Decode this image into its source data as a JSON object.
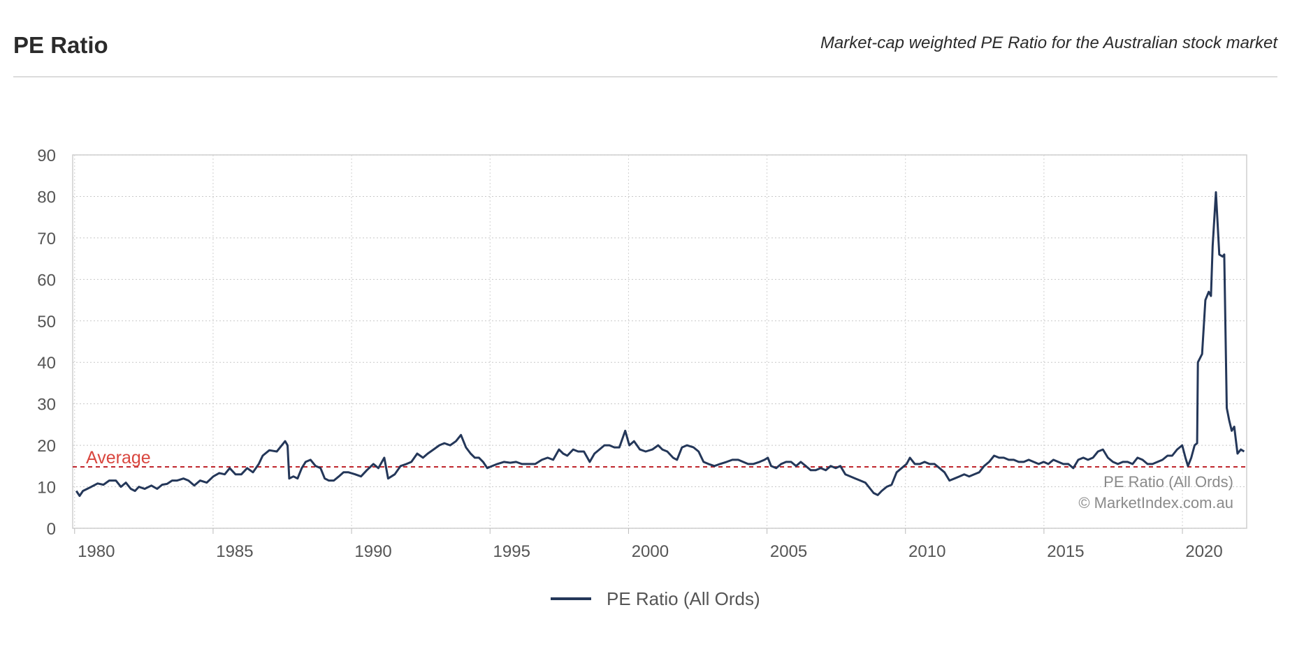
{
  "header": {
    "title": "PE Ratio",
    "subtitle": "Market-cap weighted PE Ratio for the Australian stock market"
  },
  "chart_data": {
    "type": "line",
    "title": "PE Ratio",
    "xlabel": "",
    "ylabel": "",
    "xlim": [
      1979.93,
      2022.32
    ],
    "ylim": [
      0,
      90
    ],
    "grid": true,
    "legend_placement": "bottom-center",
    "y_ticks": [
      "0",
      "10",
      "20",
      "30",
      "40",
      "50",
      "60",
      "70",
      "80",
      "90"
    ],
    "x_ticks": [
      "1980",
      "1985",
      "1990",
      "1995",
      "2000",
      "2005",
      "2010",
      "2015",
      "2020"
    ],
    "average": {
      "label": "Average",
      "value": 14.8,
      "color": "#c0262d"
    },
    "annotations": [
      "PE Ratio (All Ords)",
      "© MarketIndex.com.au"
    ],
    "series": [
      {
        "name": "PE Ratio (All Ords)",
        "color": "#243759",
        "x": [
          1980.06,
          1980.18,
          1980.3,
          1980.6,
          1980.83,
          1981.04,
          1981.25,
          1981.49,
          1981.67,
          1981.85,
          1982.03,
          1982.18,
          1982.32,
          1982.53,
          1982.77,
          1982.98,
          1983.16,
          1983.34,
          1983.52,
          1983.7,
          1983.93,
          1984.11,
          1984.32,
          1984.53,
          1984.77,
          1985.01,
          1985.22,
          1985.42,
          1985.6,
          1985.81,
          1986.02,
          1986.23,
          1986.44,
          1986.65,
          1986.79,
          1987.03,
          1987.3,
          1987.6,
          1987.69,
          1987.75,
          1987.9,
          1988.05,
          1988.2,
          1988.34,
          1988.52,
          1988.7,
          1988.88,
          1989.03,
          1989.18,
          1989.36,
          1989.54,
          1989.71,
          1989.89,
          1990.13,
          1990.34,
          1990.55,
          1990.79,
          1990.97,
          1991.18,
          1991.32,
          1991.56,
          1991.77,
          1991.98,
          1992.16,
          1992.37,
          1992.58,
          1992.75,
          1992.96,
          1993.17,
          1993.35,
          1993.56,
          1993.77,
          1993.95,
          1994.13,
          1994.3,
          1994.45,
          1994.6,
          1994.75,
          1994.9,
          1995.08,
          1995.26,
          1995.5,
          1995.73,
          1995.94,
          1996.15,
          1996.39,
          1996.63,
          1996.87,
          1997.08,
          1997.28,
          1997.49,
          1997.64,
          1997.79,
          1998.0,
          1998.18,
          1998.39,
          1998.6,
          1998.77,
          1998.95,
          1999.13,
          1999.31,
          1999.49,
          1999.67,
          1999.88,
          2000.03,
          2000.2,
          2000.41,
          2000.62,
          2000.86,
          2001.07,
          2001.22,
          2001.4,
          2001.61,
          2001.75,
          2001.93,
          2002.11,
          2002.35,
          2002.53,
          2002.71,
          2002.89,
          2003.1,
          2003.3,
          2003.54,
          2003.75,
          2003.96,
          2004.14,
          2004.32,
          2004.5,
          2004.73,
          2004.91,
          2005.03,
          2005.15,
          2005.33,
          2005.51,
          2005.69,
          2005.87,
          2006.05,
          2006.22,
          2006.4,
          2006.58,
          2006.76,
          2006.94,
          2007.12,
          2007.3,
          2007.48,
          2007.65,
          2007.83,
          2008.01,
          2008.19,
          2008.37,
          2008.55,
          2008.73,
          2008.85,
          2009.0,
          2009.14,
          2009.32,
          2009.5,
          2009.68,
          2009.86,
          2010.04,
          2010.16,
          2010.34,
          2010.52,
          2010.69,
          2010.87,
          2011.05,
          2011.23,
          2011.41,
          2011.59,
          2011.77,
          2011.95,
          2012.12,
          2012.3,
          2012.48,
          2012.66,
          2012.84,
          2013.02,
          2013.2,
          2013.38,
          2013.55,
          2013.73,
          2013.91,
          2014.09,
          2014.27,
          2014.45,
          2014.63,
          2014.81,
          2014.99,
          2015.16,
          2015.34,
          2015.52,
          2015.7,
          2015.88,
          2016.06,
          2016.24,
          2016.42,
          2016.59,
          2016.77,
          2016.95,
          2017.13,
          2017.31,
          2017.49,
          2017.67,
          2017.85,
          2018.02,
          2018.2,
          2018.38,
          2018.56,
          2018.74,
          2018.92,
          2019.1,
          2019.28,
          2019.46,
          2019.63,
          2019.81,
          2019.99,
          2020.11,
          2020.2,
          2020.32,
          2020.44,
          2020.53,
          2020.56,
          2020.71,
          2020.83,
          2020.95,
          2021.03,
          2021.09,
          2021.21,
          2021.33,
          2021.45,
          2021.51,
          2021.6,
          2021.69,
          2021.78,
          2021.87,
          2021.99,
          2022.11,
          2022.23
        ],
        "y": [
          9,
          7.8,
          9,
          10,
          10.8,
          10.5,
          11.5,
          11.5,
          10,
          11,
          9.5,
          9,
          10,
          9.5,
          10.3,
          9.5,
          10.5,
          10.7,
          11.5,
          11.5,
          12,
          11.5,
          10.3,
          11.5,
          11,
          12.5,
          13.3,
          13,
          14.5,
          13,
          13,
          14.5,
          13.5,
          15.5,
          17.5,
          18.8,
          18.5,
          21,
          20,
          12,
          12.5,
          12,
          14.5,
          16,
          16.5,
          15,
          14.5,
          12,
          11.5,
          11.5,
          12.5,
          13.5,
          13.5,
          13,
          12.5,
          14,
          15.5,
          14.5,
          17,
          12,
          13,
          15,
          15.5,
          16,
          18,
          17,
          18,
          19,
          20,
          20.5,
          20,
          21,
          22.5,
          19.5,
          18,
          17,
          17,
          16,
          14.5,
          15,
          15.5,
          16,
          15.8,
          16,
          15.5,
          15.5,
          15.5,
          16.5,
          17,
          16.5,
          19,
          18,
          17.5,
          19,
          18.5,
          18.5,
          16,
          18,
          19,
          20,
          20,
          19.5,
          19.5,
          23.5,
          20,
          21,
          19,
          18.5,
          19,
          20,
          19,
          18.5,
          17,
          16.5,
          19.5,
          20,
          19.5,
          18.5,
          16,
          15.5,
          15,
          15.5,
          16,
          16.5,
          16.5,
          16,
          15.5,
          15.5,
          16,
          16.5,
          17,
          15,
          14.5,
          15.5,
          16,
          16,
          15,
          16,
          15,
          14,
          14,
          14.5,
          14,
          15,
          14.5,
          15,
          13,
          12.5,
          12,
          11.5,
          11,
          9.5,
          8.5,
          8,
          9,
          10,
          10.5,
          13.5,
          14.5,
          15.5,
          17,
          15.5,
          15.5,
          16,
          15.5,
          15.5,
          14.5,
          13.5,
          11.5,
          12,
          12.5,
          13,
          12.5,
          13,
          13.5,
          15,
          16,
          17.5,
          17,
          17,
          16.5,
          16.5,
          16,
          16,
          16.5,
          16,
          15.5,
          16,
          15.5,
          16.5,
          16,
          15.5,
          15.5,
          14.5,
          16.5,
          17,
          16.5,
          17,
          18.5,
          19,
          17,
          16,
          15.5,
          16,
          16,
          15.5,
          17,
          16.5,
          15.5,
          15.5,
          16,
          16.5,
          17.5,
          17.5,
          19,
          20,
          17,
          15,
          17,
          20,
          20.5,
          40,
          42,
          55,
          57,
          56,
          68,
          81,
          66,
          65.5,
          66,
          29,
          26,
          23.5,
          24.5,
          18,
          19,
          18.5
        ]
      }
    ]
  }
}
